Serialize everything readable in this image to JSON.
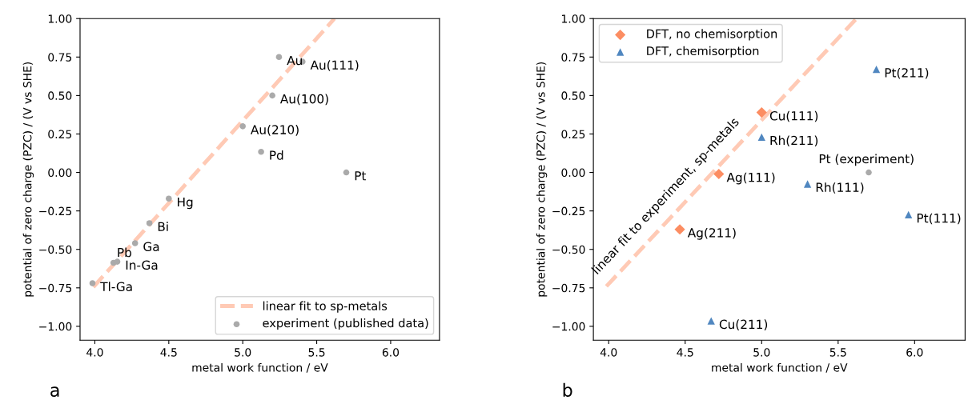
{
  "chart_data": [
    {
      "type": "scatter",
      "xlabel": "metal work function / eV",
      "ylabel": "potential of zero charge (PZC) / (V vs SHE)",
      "xlim": [
        3.9,
        6.33
      ],
      "ylim": [
        -1.09,
        1.0
      ],
      "xticks": [
        {
          "value": 4,
          "label": "4.0"
        },
        {
          "value": 4.5,
          "label": "4.5"
        },
        {
          "value": 5,
          "label": "5.0"
        },
        {
          "value": 5.5,
          "label": "5.5"
        },
        {
          "value": 6,
          "label": "6.0"
        }
      ],
      "yticks": [
        {
          "value": -1,
          "label": "−1.00"
        },
        {
          "value": -0.75,
          "label": "−0.75"
        },
        {
          "value": -0.5,
          "label": "−0.50"
        },
        {
          "value": -0.25,
          "label": "−0.25"
        },
        {
          "value": 0,
          "label": "0.00"
        },
        {
          "value": 0.25,
          "label": "0.25"
        },
        {
          "value": 0.5,
          "label": "0.50"
        },
        {
          "value": 0.75,
          "label": "0.75"
        },
        {
          "value": 1,
          "label": "1.00"
        }
      ],
      "grid": false,
      "legend": "bottom right",
      "series": [
        {
          "type": "line",
          "name": "linear fit to sp-metals",
          "color": "#ffcab5",
          "line_style": "dashed",
          "marker": "none",
          "x": [
            3.99,
            5.62
          ],
          "values": [
            -0.745,
            1.0
          ]
        },
        {
          "name": "experiment (published data)",
          "color": "#aaaaaa",
          "marker": "circle",
          "x": [
            3.984,
            4.126,
            4.152,
            4.272,
            4.369,
            4.5,
            5.0,
            5.124,
            5.2,
            5.245,
            5.404,
            5.7
          ],
          "values": [
            -0.72,
            -0.587,
            -0.58,
            -0.46,
            -0.33,
            -0.17,
            0.3,
            0.134,
            0.5,
            0.75,
            0.72,
            0.0
          ]
        }
      ],
      "annotations": [
        {
          "text": "Tl-Ga",
          "x": 3.984,
          "y": -0.72
        },
        {
          "text": "Pb",
          "x": 4.126,
          "y": -0.587
        },
        {
          "text": "In-Ga",
          "x": 4.152,
          "y": -0.58
        },
        {
          "text": "Ga",
          "x": 4.272,
          "y": -0.46
        },
        {
          "text": "Bi",
          "x": 4.369,
          "y": -0.33
        },
        {
          "text": "Hg",
          "x": 4.5,
          "y": -0.17
        },
        {
          "text": "Au(210)",
          "x": 5.0,
          "y": 0.3
        },
        {
          "text": "Pd",
          "x": 5.124,
          "y": 0.134
        },
        {
          "text": "Au(100)",
          "x": 5.2,
          "y": 0.5
        },
        {
          "text": "Au",
          "x": 5.245,
          "y": 0.75
        },
        {
          "text": "Au(111)",
          "x": 5.404,
          "y": 0.72
        },
        {
          "text": "Pt",
          "x": 5.7,
          "y": 0.0
        },
        "a"
      ]
    },
    {
      "type": "scatter",
      "xlabel": "metal work function / eV",
      "ylabel": "potential of zero charge (PZC) / (V vs SHE)",
      "xlim": [
        3.9,
        6.33
      ],
      "ylim": [
        -1.09,
        1.0
      ],
      "xticks": [
        {
          "value": 4,
          "label": "4.0"
        },
        {
          "value": 4.5,
          "label": "4.5"
        },
        {
          "value": 5,
          "label": "5.0"
        },
        {
          "value": 5.5,
          "label": "5.5"
        },
        {
          "value": 6,
          "label": "6.0"
        }
      ],
      "yticks": [
        {
          "value": -1,
          "label": "−1.00"
        },
        {
          "value": -0.75,
          "label": "−0.75"
        },
        {
          "value": -0.5,
          "label": "−0.50"
        },
        {
          "value": -0.25,
          "label": "−0.25"
        },
        {
          "value": 0,
          "label": "0.00"
        },
        {
          "value": 0.25,
          "label": "0.25"
        },
        {
          "value": 0.5,
          "label": "0.50"
        },
        {
          "value": 0.75,
          "label": "0.75"
        },
        {
          "value": 1,
          "label": "1.00"
        }
      ],
      "grid": false,
      "legend": "top left",
      "series": [
        {
          "type": "line",
          "color": "#ffcab5",
          "line_style": "dashed",
          "marker": "none",
          "x": [
            3.985,
            5.62
          ],
          "values": [
            -0.74,
            1.0
          ]
        },
        {
          "name": "DFT, no chemisorption",
          "color": "#fc8d62",
          "marker": "diamond",
          "x": [
            4.465,
            4.72,
            5.0
          ],
          "values": [
            -0.37,
            -0.01,
            0.39
          ]
        },
        {
          "name": "DFT, chemisorption",
          "color": "#5087c0",
          "marker": "triangle",
          "x": [
            4.67,
            5.0,
            5.3,
            5.75,
            5.96
          ],
          "values": [
            -0.965,
            0.23,
            -0.075,
            0.67,
            -0.275
          ]
        },
        {
          "color": "#aaaaaa",
          "marker": "circle",
          "x": [
            5.7
          ],
          "values": [
            0.0
          ]
        }
      ],
      "annotations": [
        {
          "text": "Ag(211)",
          "x": 4.465,
          "y": -0.37
        },
        {
          "text": "Ag(111)",
          "x": 4.72,
          "y": -0.01
        },
        {
          "text": "Cu(111)",
          "x": 5.0,
          "y": 0.39
        },
        {
          "text": "Cu(211)",
          "x": 4.67,
          "y": -0.965
        },
        {
          "text": "Rh(211)",
          "x": 5.0,
          "y": 0.23
        },
        {
          "text": "Rh(111)",
          "x": 5.3,
          "y": -0.075
        },
        {
          "text": "Pt(211)",
          "x": 5.75,
          "y": 0.67
        },
        {
          "text": "Pt(111)",
          "x": 5.96,
          "y": -0.275
        },
        {
          "text": "Pt (experiment)",
          "x": 5.7,
          "y": 0.0
        },
        "linear fit to experiment, sp-metals",
        "b"
      ]
    }
  ]
}
